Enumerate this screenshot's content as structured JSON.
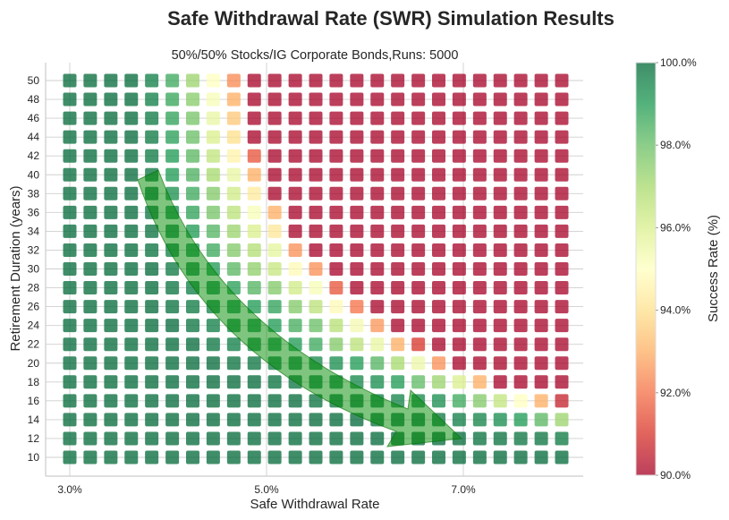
{
  "chart_data": {
    "type": "heatmap",
    "title": "Safe Withdrawal Rate (SWR) Simulation Results",
    "subtitle": "50%/50% Stocks/IG Corporate Bonds,Runs: 5000",
    "xlabel": "Safe Withdrawal Rate",
    "ylabel": "Retirement Duration (years)",
    "colorbar_label": "Success Rate (%)",
    "colormap": "RdYlGn",
    "color_range": [
      90,
      100
    ],
    "xlim": [
      2.75,
      8.25
    ],
    "x_ticks": [
      3.0,
      5.0,
      7.0
    ],
    "x_tick_labels": [
      "3.0%",
      "5.0%",
      "7.0%"
    ],
    "y_ticks": [
      10,
      12,
      14,
      16,
      18,
      20,
      22,
      24,
      26,
      28,
      30,
      32,
      34,
      36,
      38,
      40,
      42,
      44,
      46,
      48,
      50
    ],
    "colorbar_ticks": [
      100,
      98,
      96,
      94,
      92,
      90
    ],
    "colorbar_tick_labels": [
      "100.0%",
      "98.0%",
      "96.0%",
      "94.0%",
      "92.0%",
      "90.0%"
    ],
    "grid": true,
    "x_values": [
      3.0,
      3.208,
      3.417,
      3.625,
      3.833,
      4.042,
      4.25,
      4.458,
      4.667,
      4.875,
      5.083,
      5.292,
      5.5,
      5.708,
      5.917,
      6.125,
      6.333,
      6.542,
      6.75,
      6.958,
      7.167,
      7.375,
      7.583,
      7.792,
      8.0
    ],
    "y_values": [
      50,
      48,
      46,
      44,
      42,
      40,
      38,
      36,
      34,
      32,
      30,
      28,
      26,
      24,
      22,
      20,
      18,
      16,
      14,
      12,
      10
    ],
    "success_rates": [
      [
        100,
        100,
        100,
        100,
        99.6,
        98.6,
        97.2,
        95.0,
        92.4,
        90,
        90,
        90,
        90,
        90,
        90,
        90,
        90,
        90,
        90,
        90,
        90,
        90,
        90,
        90,
        90
      ],
      [
        100,
        100,
        100,
        100,
        99.6,
        98.7,
        97.5,
        95.2,
        93.0,
        90,
        90,
        90,
        90,
        90,
        90,
        90,
        90,
        90,
        90,
        90,
        90,
        90,
        90,
        90,
        90
      ],
      [
        100,
        100,
        100,
        100,
        99.7,
        98.8,
        97.8,
        95.6,
        93.5,
        90,
        90,
        90,
        90,
        90,
        90,
        90,
        90,
        90,
        90,
        90,
        90,
        90,
        90,
        90,
        90
      ],
      [
        100,
        100,
        100,
        100,
        99.7,
        98.9,
        98.0,
        96.0,
        94.0,
        90,
        90,
        90,
        90,
        90,
        90,
        90,
        90,
        90,
        90,
        90,
        90,
        90,
        90,
        90,
        90
      ],
      [
        100,
        100,
        100,
        100,
        99.7,
        99.0,
        98.2,
        96.5,
        94.6,
        91.5,
        90,
        90,
        90,
        90,
        90,
        90,
        90,
        90,
        90,
        90,
        90,
        90,
        90,
        90,
        90
      ],
      [
        100,
        100,
        100,
        100,
        99.8,
        99.0,
        98.4,
        97.0,
        95.6,
        93.0,
        90,
        90,
        90,
        90,
        90,
        90,
        90,
        90,
        90,
        90,
        90,
        90,
        90,
        90,
        90
      ],
      [
        100,
        100,
        100,
        100,
        99.8,
        99.2,
        98.6,
        97.6,
        96.2,
        94.3,
        90,
        90,
        90,
        90,
        90,
        90,
        90,
        90,
        90,
        90,
        90,
        90,
        90,
        90,
        90
      ],
      [
        100,
        100,
        100,
        100,
        99.8,
        99.3,
        98.8,
        97.8,
        96.6,
        95.2,
        93.0,
        90,
        90,
        90,
        90,
        90,
        90,
        90,
        90,
        90,
        90,
        90,
        90,
        90,
        90
      ],
      [
        100,
        100,
        100,
        100,
        99.9,
        99.5,
        99.0,
        98.3,
        97.2,
        96.0,
        94.2,
        90,
        90,
        90,
        90,
        90,
        90,
        90,
        90,
        90,
        90,
        90,
        90,
        90,
        90
      ],
      [
        100,
        100,
        100,
        100,
        99.9,
        99.6,
        99.2,
        98.6,
        97.6,
        96.8,
        95.7,
        92.5,
        90,
        90,
        90,
        90,
        90,
        90,
        90,
        90,
        90,
        90,
        90,
        90,
        90
      ],
      [
        100,
        100,
        100,
        100,
        100,
        99.7,
        99.4,
        99.0,
        98.2,
        97.4,
        96.4,
        94.8,
        92.5,
        90,
        90,
        90,
        90,
        90,
        90,
        90,
        90,
        90,
        90,
        90,
        90
      ],
      [
        100,
        100,
        100,
        100,
        100,
        99.8,
        99.6,
        99.3,
        98.9,
        98.3,
        97.6,
        96.2,
        95.2,
        91.5,
        90,
        90,
        90,
        90,
        90,
        90,
        90,
        90,
        90,
        90,
        90
      ],
      [
        100,
        100,
        100,
        100,
        100,
        99.9,
        99.7,
        99.5,
        99.2,
        99.0,
        98.8,
        97.6,
        96.6,
        94.8,
        92.0,
        90,
        90,
        90,
        90,
        90,
        90,
        90,
        90,
        90,
        90
      ],
      [
        100,
        100,
        100,
        100,
        100,
        100,
        99.8,
        99.6,
        99.4,
        99.2,
        99.0,
        98.5,
        98.0,
        96.7,
        95.3,
        92.6,
        90,
        90,
        90,
        90,
        90,
        90,
        90,
        90,
        90
      ],
      [
        100,
        100,
        100,
        100,
        100,
        100,
        100,
        99.8,
        99.6,
        99.4,
        99.2,
        99.0,
        98.6,
        97.6,
        96.6,
        95.6,
        93.0,
        91.0,
        90,
        90,
        90,
        90,
        90,
        90,
        90
      ],
      [
        100,
        100,
        100,
        100,
        100,
        100,
        100,
        100,
        99.9,
        99.8,
        99.6,
        99.5,
        99.4,
        99.3,
        99.0,
        98.3,
        97.0,
        95.5,
        92.5,
        90,
        90,
        90,
        90,
        90,
        90
      ],
      [
        100,
        100,
        100,
        100,
        100,
        100,
        100,
        100,
        100,
        100,
        99.9,
        99.8,
        99.6,
        99.5,
        99.4,
        99.3,
        99.0,
        98.1,
        97.2,
        96.0,
        93.0,
        90,
        90,
        90,
        90
      ],
      [
        100,
        100,
        100,
        100,
        100,
        100,
        100,
        100,
        100,
        100,
        100,
        100,
        99.9,
        99.8,
        99.7,
        99.6,
        99.5,
        99.4,
        99.3,
        98.6,
        97.6,
        96.5,
        95.0,
        93.0,
        90.6
      ],
      [
        100,
        100,
        100,
        100,
        100,
        100,
        100,
        100,
        100,
        100,
        100,
        100,
        100,
        100,
        100,
        99.9,
        99.8,
        99.8,
        99.7,
        99.6,
        99.5,
        99.3,
        99.0,
        98.2,
        97.2
      ],
      [
        100,
        100,
        100,
        100,
        100,
        100,
        100,
        100,
        100,
        100,
        100,
        100,
        100,
        100,
        100,
        100,
        100,
        100,
        100,
        100,
        99.9,
        99.9,
        99.8,
        99.8,
        99.7
      ],
      [
        100,
        100,
        100,
        100,
        100,
        100,
        100,
        100,
        100,
        100,
        100,
        100,
        100,
        100,
        100,
        100,
        100,
        100,
        100,
        100,
        100,
        100,
        100,
        100,
        100
      ]
    ],
    "annotation": "green-curved-arrow-pointing-down-right"
  }
}
